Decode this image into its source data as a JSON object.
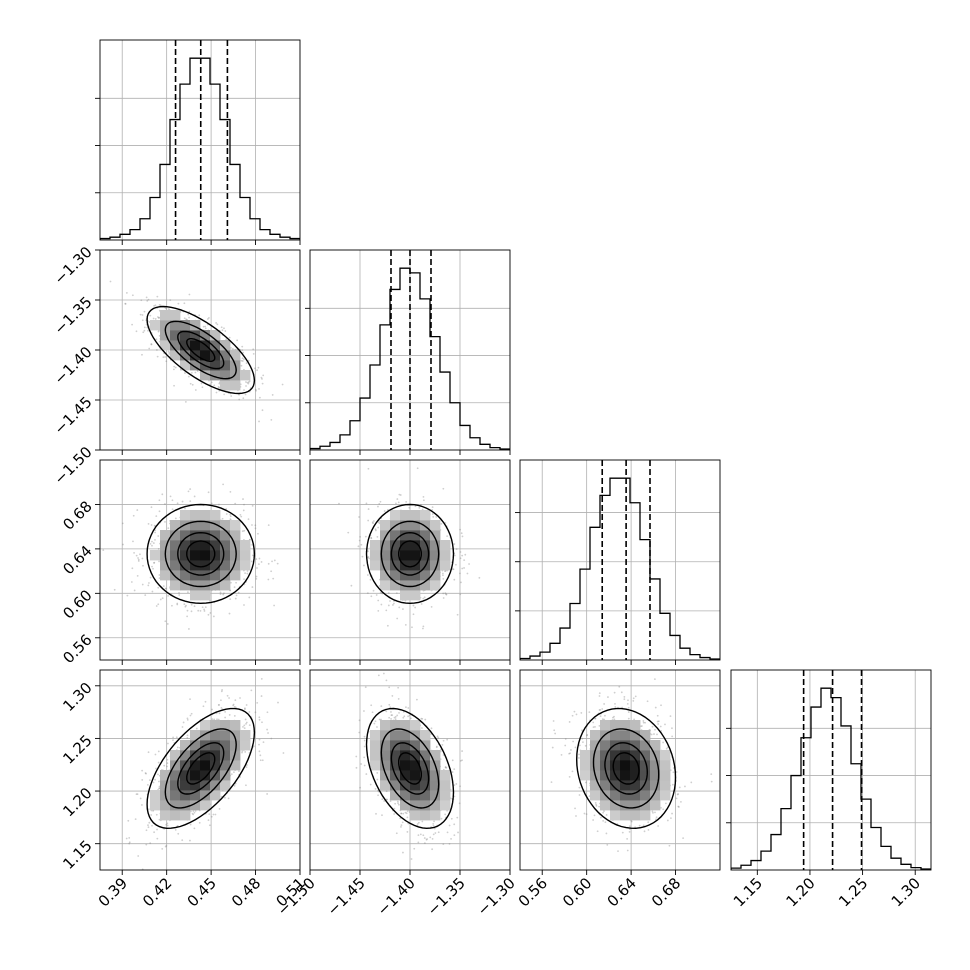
{
  "chart_data": {
    "type": "corner",
    "title": "",
    "parameters": [
      {
        "label": "",
        "range": [
          0.375,
          0.51
        ],
        "ticks": [
          "0.39",
          "0.42",
          "0.45",
          "0.48",
          "0.51"
        ],
        "quantiles": [
          0.426,
          0.443,
          0.461
        ],
        "histogram": [
          0.3,
          0.6,
          1.2,
          2.2,
          4.5,
          9.0,
          16.0,
          25.5,
          33.0,
          38.5,
          38.5,
          33.0,
          25.5,
          16.0,
          9.0,
          4.5,
          2.2,
          1.2,
          0.6,
          0.3
        ]
      },
      {
        "label": "",
        "range": [
          -1.5,
          -1.3
        ],
        "ticks": [
          "−1.50",
          "−1.45",
          "−1.40",
          "−1.35",
          "−1.30"
        ],
        "quantiles": [
          -1.419,
          -1.4,
          -1.379
        ],
        "histogram": [
          0.3,
          0.8,
          1.6,
          3.2,
          6.2,
          11.0,
          18.0,
          26.5,
          34.0,
          38.5,
          37.5,
          32.0,
          24.0,
          16.5,
          10.0,
          5.2,
          2.6,
          1.2,
          0.5,
          0.2
        ]
      },
      {
        "label": "",
        "range": [
          0.54,
          0.72
        ],
        "ticks": [
          "0.56",
          "0.60",
          "0.64",
          "0.68"
        ],
        "quantiles": [
          0.614,
          0.6355,
          0.657
        ],
        "histogram": [
          0.3,
          0.8,
          1.6,
          3.4,
          6.5,
          11.5,
          18.5,
          27.0,
          33.5,
          37.0,
          37.0,
          32.0,
          24.5,
          16.5,
          9.5,
          5.0,
          2.4,
          1.1,
          0.5,
          0.2
        ]
      },
      {
        "label": "",
        "range": [
          1.125,
          1.315
        ],
        "ticks": [
          "1.15",
          "1.20",
          "1.25",
          "1.30"
        ],
        "quantiles": [
          1.194,
          1.2215,
          1.249
        ],
        "histogram": [
          0.4,
          1.0,
          2.0,
          4.0,
          7.5,
          13.0,
          20.0,
          28.0,
          34.5,
          38.5,
          36.5,
          30.5,
          22.5,
          15.0,
          9.0,
          5.0,
          2.5,
          1.2,
          0.5,
          0.2
        ]
      }
    ],
    "pairs": [
      {
        "row": 1,
        "col": 0,
        "mean": [
          0.443,
          -1.4
        ],
        "sd": [
          0.0175,
          0.021
        ],
        "correlation": -0.7
      },
      {
        "row": 2,
        "col": 0,
        "mean": [
          0.443,
          0.6355
        ],
        "sd": [
          0.0175,
          0.0215
        ],
        "correlation": 0.0
      },
      {
        "row": 2,
        "col": 1,
        "mean": [
          -1.4,
          0.6355
        ],
        "sd": [
          0.021,
          0.0215
        ],
        "correlation": 0.0
      },
      {
        "row": 3,
        "col": 0,
        "mean": [
          0.443,
          1.2215
        ],
        "sd": [
          0.0175,
          0.0275
        ],
        "correlation": 0.6
      },
      {
        "row": 3,
        "col": 1,
        "mean": [
          -1.4,
          1.2215
        ],
        "sd": [
          0.021,
          0.0275
        ],
        "correlation": -0.4
      },
      {
        "row": 3,
        "col": 2,
        "mean": [
          0.6355,
          1.2215
        ],
        "sd": [
          0.0215,
          0.0275
        ],
        "correlation": -0.15
      }
    ],
    "contour_levels_sigma": [
      0.5,
      1.0,
      1.5,
      2.0
    ],
    "grid": true
  }
}
